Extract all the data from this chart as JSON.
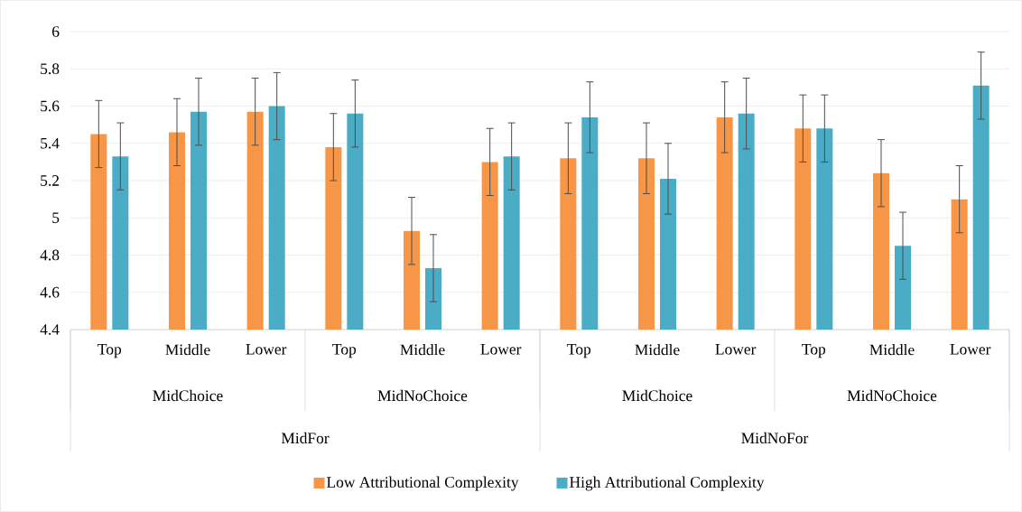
{
  "chart_data": {
    "type": "bar",
    "categories": [
      "Top",
      "Middle",
      "Lower",
      "Top",
      "Middle",
      "Lower",
      "Top",
      "Middle",
      "Lower",
      "Top",
      "Middle",
      "Lower"
    ],
    "series": [
      {
        "name": "Low Attributional Complexity",
        "color": "#f79646",
        "values": [
          5.45,
          5.46,
          5.57,
          5.38,
          4.93,
          5.3,
          5.32,
          5.32,
          5.54,
          5.48,
          5.24,
          5.1
        ],
        "errors": [
          0.18,
          0.18,
          0.18,
          0.18,
          0.18,
          0.18,
          0.19,
          0.19,
          0.19,
          0.18,
          0.18,
          0.18
        ]
      },
      {
        "name": "High Attributional Complexity",
        "color": "#4bacc6",
        "values": [
          5.33,
          5.57,
          5.6,
          5.56,
          4.73,
          5.33,
          5.54,
          5.21,
          5.56,
          5.48,
          4.85,
          5.71
        ],
        "errors": [
          0.18,
          0.18,
          0.18,
          0.18,
          0.18,
          0.18,
          0.19,
          0.19,
          0.19,
          0.18,
          0.18,
          0.18
        ]
      }
    ],
    "annotations": [
      "MidChoice",
      "MidNoChoice",
      "MidChoice",
      "MidNoChoice",
      "MidFor",
      "MidNoFor"
    ],
    "ylim": [
      4.4,
      6
    ],
    "yticks": [
      4.4,
      4.6,
      4.8,
      5,
      5.2,
      5.4,
      5.6,
      5.8,
      6
    ],
    "grid": "y",
    "legend": "bottom"
  }
}
